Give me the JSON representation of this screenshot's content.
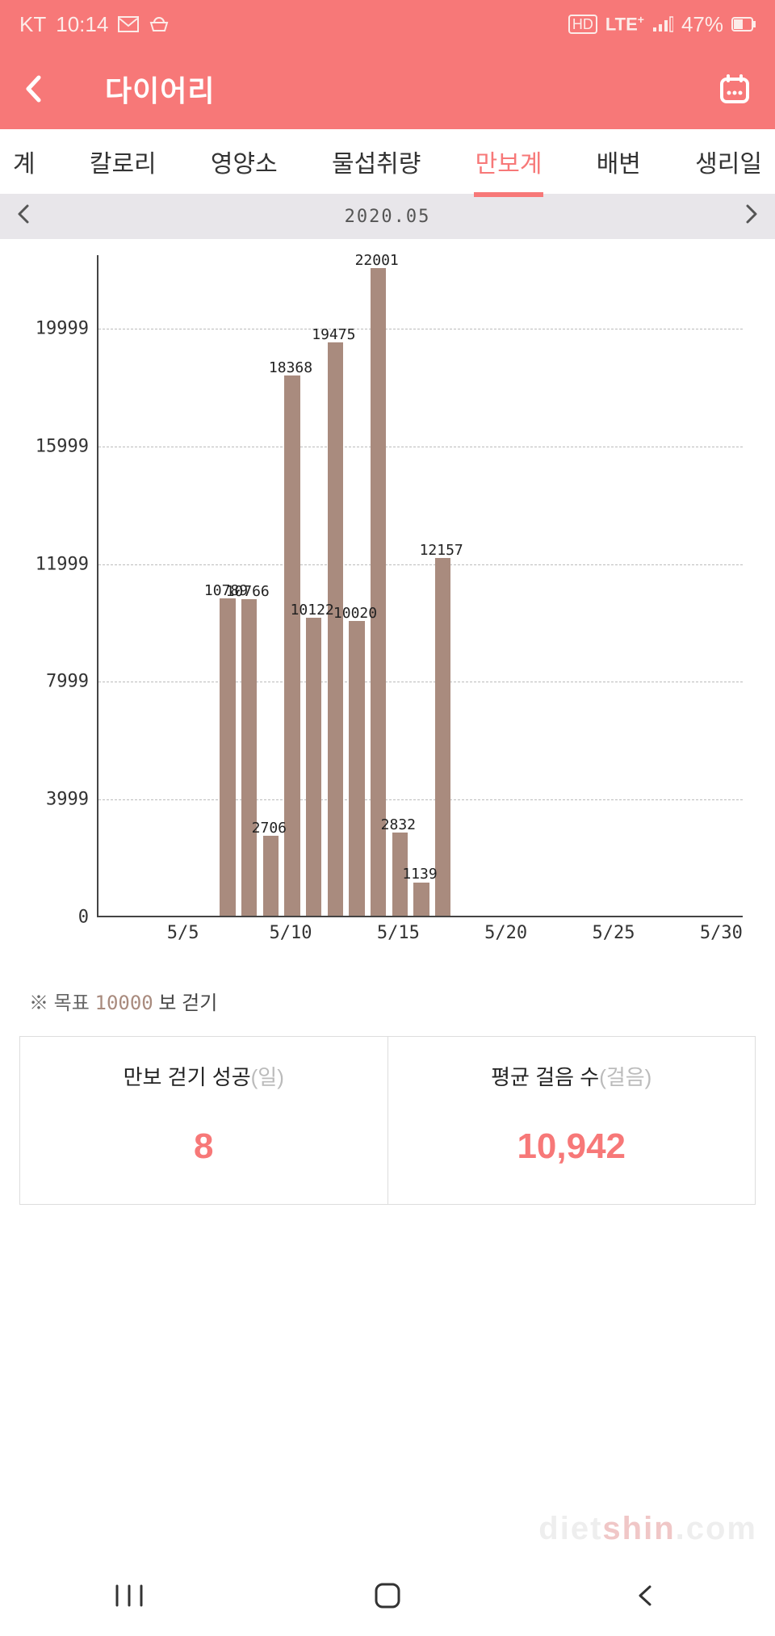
{
  "status": {
    "carrier": "KT",
    "time": "10:14",
    "network1": "HD",
    "network2": "LTE",
    "network2_sup": "+",
    "battery": "47%"
  },
  "header": {
    "title": "다이어리"
  },
  "tabs": {
    "items": [
      "계",
      "칼로리",
      "영양소",
      "물섭취량",
      "만보계",
      "배변",
      "생리일"
    ],
    "active_index": 4
  },
  "period": {
    "label": "2020.05"
  },
  "chart": {
    "type": "bar",
    "bar_color": "#a98b7e",
    "grid_color": "#bbbbbb",
    "background_color": "#ffffff",
    "ylim": [
      0,
      22500
    ],
    "yticks": [
      0,
      3999,
      7999,
      11999,
      15999,
      19999
    ],
    "x_domain": [
      1,
      31
    ],
    "xticks": [
      "5/5",
      "5/10",
      "5/15",
      "5/20",
      "5/25",
      "5/30"
    ],
    "xtick_days": [
      5,
      10,
      15,
      20,
      25,
      30
    ],
    "bar_width": 0.72,
    "label_fontsize": 18,
    "data": [
      {
        "day": 7,
        "value": 10789,
        "label": "10789"
      },
      {
        "day": 8,
        "value": 10766,
        "label": "10766"
      },
      {
        "day": 9,
        "value": 2706,
        "label": "2706"
      },
      {
        "day": 10,
        "value": 18368,
        "label": "18368"
      },
      {
        "day": 11,
        "value": 10122,
        "label": "10122"
      },
      {
        "day": 12,
        "value": 19475,
        "label": "19475"
      },
      {
        "day": 13,
        "value": 10020,
        "label": "10020"
      },
      {
        "day": 14,
        "value": 22001,
        "label": "22001"
      },
      {
        "day": 15,
        "value": 2832,
        "label": "2832"
      },
      {
        "day": 16,
        "value": 1139,
        "label": "1139"
      },
      {
        "day": 17,
        "value": 12157,
        "label": "12157"
      }
    ]
  },
  "target": {
    "prefix": "※ 목표",
    "value": "10000",
    "suffix": "보 걷기"
  },
  "stats": {
    "left": {
      "label": "만보 걷기 성공",
      "unit": "(일)",
      "value": "8"
    },
    "right": {
      "label": "평균 걸음 수",
      "unit": "(걸음)",
      "value": "10,942"
    }
  },
  "watermark": {
    "t1": "diet",
    "t2": "shin",
    "t3": ".com"
  }
}
